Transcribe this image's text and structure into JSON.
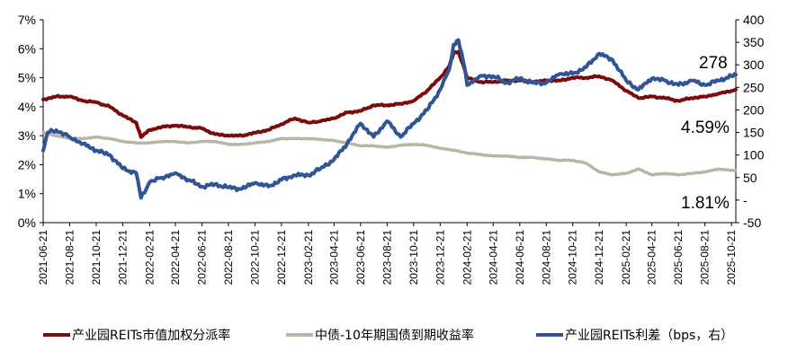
{
  "chart_data": {
    "type": "line",
    "title": "",
    "xlabel": "",
    "ylabel_left": "",
    "ylabel_right": "",
    "grid": false,
    "legend_position": "bottom",
    "x_ticks": [
      "2021-06-21",
      "2021-08-21",
      "2021-10-21",
      "2021-12-21",
      "2022-02-21",
      "2022-04-21",
      "2022-06-21",
      "2022-08-21",
      "2022-10-21",
      "2022-12-21",
      "2023-02-21",
      "2023-04-21",
      "2023-06-21",
      "2023-08-21",
      "2023-10-21",
      "2023-12-21",
      "2024-02-21",
      "2024-04-21",
      "2024-06-21",
      "2024-08-21",
      "2024-10-21",
      "2024-12-21",
      "2025-02-21",
      "2025-04-21",
      "2025-06-21",
      "2025-08-21",
      "2025-10-21"
    ],
    "left_axis": {
      "ylim": [
        0,
        7
      ],
      "ticks": [
        "0%",
        "1%",
        "2%",
        "3%",
        "4%",
        "5%",
        "6%",
        "7%"
      ]
    },
    "right_axis": {
      "ylim": [
        -50,
        400
      ],
      "ticks": [
        "-50",
        "-",
        "50",
        "100",
        "150",
        "200",
        "250",
        "300",
        "350",
        "400"
      ]
    },
    "series": [
      {
        "name": "产业园REITs市值加权分派率",
        "color": "#7B0C0C",
        "axis": "left",
        "points": [
          [
            "2021-06-21",
            4.25
          ],
          [
            "2021-07-21",
            4.35
          ],
          [
            "2021-08-21",
            4.35
          ],
          [
            "2021-09-21",
            4.2
          ],
          [
            "2021-10-21",
            4.15
          ],
          [
            "2021-11-21",
            4.0
          ],
          [
            "2021-12-21",
            3.7
          ],
          [
            "2022-01-21",
            3.45
          ],
          [
            "2022-02-01",
            2.95
          ],
          [
            "2022-02-21",
            3.2
          ],
          [
            "2022-03-21",
            3.3
          ],
          [
            "2022-04-21",
            3.35
          ],
          [
            "2022-05-21",
            3.3
          ],
          [
            "2022-06-21",
            3.25
          ],
          [
            "2022-07-21",
            3.05
          ],
          [
            "2022-08-21",
            3.0
          ],
          [
            "2022-09-21",
            3.0
          ],
          [
            "2022-10-21",
            3.1
          ],
          [
            "2022-11-21",
            3.2
          ],
          [
            "2022-12-21",
            3.4
          ],
          [
            "2023-01-21",
            3.6
          ],
          [
            "2023-02-21",
            3.45
          ],
          [
            "2023-03-21",
            3.5
          ],
          [
            "2023-04-21",
            3.6
          ],
          [
            "2023-05-21",
            3.8
          ],
          [
            "2023-06-21",
            3.85
          ],
          [
            "2023-07-21",
            4.05
          ],
          [
            "2023-08-21",
            4.05
          ],
          [
            "2023-09-21",
            4.1
          ],
          [
            "2023-10-21",
            4.2
          ],
          [
            "2023-11-21",
            4.55
          ],
          [
            "2023-12-21",
            5.0
          ],
          [
            "2024-01-11",
            5.4
          ],
          [
            "2024-01-21",
            5.85
          ],
          [
            "2024-02-01",
            5.9
          ],
          [
            "2024-02-15",
            5.3
          ],
          [
            "2024-02-21",
            5.0
          ],
          [
            "2024-03-21",
            4.85
          ],
          [
            "2024-04-21",
            4.85
          ],
          [
            "2024-05-21",
            4.9
          ],
          [
            "2024-06-21",
            4.9
          ],
          [
            "2024-07-21",
            4.85
          ],
          [
            "2024-08-21",
            4.9
          ],
          [
            "2024-09-21",
            4.9
          ],
          [
            "2024-10-21",
            5.0
          ],
          [
            "2024-11-21",
            5.0
          ],
          [
            "2024-12-21",
            5.05
          ],
          [
            "2025-01-21",
            4.9
          ],
          [
            "2025-02-21",
            4.55
          ],
          [
            "2025-03-21",
            4.3
          ],
          [
            "2025-04-21",
            4.35
          ],
          [
            "2025-05-21",
            4.3
          ],
          [
            "2025-06-21",
            4.2
          ],
          [
            "2025-07-21",
            4.3
          ],
          [
            "2025-08-21",
            4.35
          ],
          [
            "2025-09-21",
            4.45
          ],
          [
            "2025-10-21",
            4.55
          ],
          [
            "2025-10-31",
            4.59
          ]
        ]
      },
      {
        "name": "中债-10年期国债到期收益率",
        "color": "#B9B6A8",
        "axis": "left",
        "points": [
          [
            "2021-06-21",
            3.1
          ],
          [
            "2021-07-21",
            3.0
          ],
          [
            "2021-08-21",
            2.9
          ],
          [
            "2021-09-21",
            2.9
          ],
          [
            "2021-10-21",
            2.95
          ],
          [
            "2021-11-21",
            2.9
          ],
          [
            "2021-12-21",
            2.8
          ],
          [
            "2022-01-21",
            2.75
          ],
          [
            "2022-02-21",
            2.75
          ],
          [
            "2022-03-21",
            2.8
          ],
          [
            "2022-04-21",
            2.8
          ],
          [
            "2022-05-21",
            2.75
          ],
          [
            "2022-06-21",
            2.8
          ],
          [
            "2022-07-21",
            2.8
          ],
          [
            "2022-08-21",
            2.7
          ],
          [
            "2022-09-21",
            2.7
          ],
          [
            "2022-10-21",
            2.75
          ],
          [
            "2022-11-21",
            2.8
          ],
          [
            "2022-12-21",
            2.9
          ],
          [
            "2023-01-21",
            2.9
          ],
          [
            "2023-02-21",
            2.9
          ],
          [
            "2023-03-21",
            2.87
          ],
          [
            "2023-04-21",
            2.83
          ],
          [
            "2023-05-21",
            2.75
          ],
          [
            "2023-06-21",
            2.65
          ],
          [
            "2023-07-21",
            2.65
          ],
          [
            "2023-08-21",
            2.6
          ],
          [
            "2023-09-21",
            2.67
          ],
          [
            "2023-10-21",
            2.7
          ],
          [
            "2023-11-21",
            2.67
          ],
          [
            "2023-12-21",
            2.57
          ],
          [
            "2024-01-21",
            2.5
          ],
          [
            "2024-02-21",
            2.4
          ],
          [
            "2024-03-21",
            2.35
          ],
          [
            "2024-04-21",
            2.3
          ],
          [
            "2024-05-21",
            2.3
          ],
          [
            "2024-06-21",
            2.25
          ],
          [
            "2024-07-21",
            2.25
          ],
          [
            "2024-08-21",
            2.2
          ],
          [
            "2024-09-21",
            2.15
          ],
          [
            "2024-10-21",
            2.15
          ],
          [
            "2024-11-21",
            2.05
          ],
          [
            "2024-12-21",
            1.75
          ],
          [
            "2025-01-21",
            1.65
          ],
          [
            "2025-02-21",
            1.7
          ],
          [
            "2025-03-21",
            1.85
          ],
          [
            "2025-04-21",
            1.65
          ],
          [
            "2025-05-21",
            1.7
          ],
          [
            "2025-06-21",
            1.65
          ],
          [
            "2025-07-21",
            1.7
          ],
          [
            "2025-08-21",
            1.75
          ],
          [
            "2025-09-21",
            1.85
          ],
          [
            "2025-10-21",
            1.8
          ],
          [
            "2025-10-31",
            1.81
          ]
        ]
      },
      {
        "name": "产业园REITs利差（bps，右）",
        "color": "#2F5597",
        "axis": "right",
        "points": [
          [
            "2021-06-21",
            110
          ],
          [
            "2021-07-01",
            150
          ],
          [
            "2021-07-21",
            155
          ],
          [
            "2021-08-21",
            140
          ],
          [
            "2021-09-21",
            125
          ],
          [
            "2021-10-21",
            110
          ],
          [
            "2021-11-21",
            100
          ],
          [
            "2021-12-21",
            70
          ],
          [
            "2022-01-21",
            60
          ],
          [
            "2022-02-01",
            5
          ],
          [
            "2022-02-21",
            40
          ],
          [
            "2022-03-21",
            50
          ],
          [
            "2022-04-21",
            60
          ],
          [
            "2022-05-21",
            45
          ],
          [
            "2022-06-21",
            30
          ],
          [
            "2022-07-21",
            35
          ],
          [
            "2022-08-21",
            28
          ],
          [
            "2022-09-21",
            25
          ],
          [
            "2022-10-21",
            38
          ],
          [
            "2022-11-21",
            30
          ],
          [
            "2022-12-21",
            45
          ],
          [
            "2023-01-21",
            55
          ],
          [
            "2023-02-21",
            55
          ],
          [
            "2023-03-21",
            70
          ],
          [
            "2023-04-21",
            90
          ],
          [
            "2023-05-21",
            125
          ],
          [
            "2023-06-21",
            170
          ],
          [
            "2023-07-21",
            140
          ],
          [
            "2023-08-21",
            175
          ],
          [
            "2023-09-21",
            140
          ],
          [
            "2023-10-21",
            170
          ],
          [
            "2023-11-21",
            200
          ],
          [
            "2023-12-21",
            245
          ],
          [
            "2024-01-11",
            290
          ],
          [
            "2024-01-21",
            345
          ],
          [
            "2024-02-01",
            355
          ],
          [
            "2024-02-15",
            295
          ],
          [
            "2024-02-21",
            255
          ],
          [
            "2024-03-21",
            275
          ],
          [
            "2024-04-21",
            275
          ],
          [
            "2024-05-21",
            260
          ],
          [
            "2024-06-21",
            270
          ],
          [
            "2024-07-21",
            260
          ],
          [
            "2024-08-21",
            260
          ],
          [
            "2024-09-21",
            280
          ],
          [
            "2024-10-21",
            280
          ],
          [
            "2024-11-21",
            295
          ],
          [
            "2024-12-21",
            325
          ],
          [
            "2025-01-21",
            310
          ],
          [
            "2025-02-21",
            265
          ],
          [
            "2025-03-21",
            245
          ],
          [
            "2025-04-21",
            270
          ],
          [
            "2025-05-21",
            265
          ],
          [
            "2025-06-21",
            255
          ],
          [
            "2025-07-21",
            265
          ],
          [
            "2025-08-21",
            255
          ],
          [
            "2025-09-21",
            265
          ],
          [
            "2025-10-21",
            275
          ],
          [
            "2025-10-31",
            278
          ]
        ]
      }
    ],
    "annotations": [
      {
        "text": "278",
        "anchor_series": 2
      },
      {
        "text": "4.59%",
        "anchor_series": 0
      },
      {
        "text": "1.81%",
        "anchor_series": 1
      }
    ]
  }
}
